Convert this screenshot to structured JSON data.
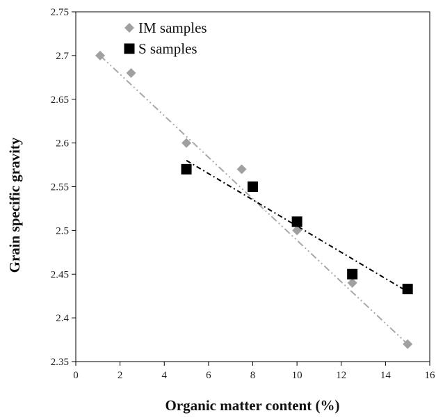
{
  "chart_data": {
    "type": "scatter",
    "xlabel": "Organic matter content (%)",
    "ylabel": "Grain specific gravity",
    "xlim": [
      0,
      16
    ],
    "ylim": [
      2.35,
      2.75
    ],
    "xticks": [
      "0",
      "2",
      "4",
      "6",
      "8",
      "10",
      "12",
      "14",
      "16"
    ],
    "yticks": [
      "2.35",
      "2.4",
      "2.45",
      "2.5",
      "2.55",
      "2.6",
      "2.65",
      "2.7",
      "2.75"
    ],
    "grid": false,
    "legend_position": "top-left",
    "series": [
      {
        "name": "IM samples",
        "marker": "diamond",
        "color": "#a0a0a0",
        "x": [
          1.1,
          2.5,
          5.0,
          7.5,
          10.0,
          12.5,
          15.0
        ],
        "y": [
          2.7,
          2.68,
          2.6,
          2.57,
          2.5,
          2.44,
          2.37
        ],
        "trendline": {
          "style": "dash-dot-dot",
          "color": "#a8a8a8",
          "x": [
            1.1,
            15.0
          ],
          "y": [
            2.7,
            2.37
          ]
        }
      },
      {
        "name": "S samples",
        "marker": "square",
        "color": "#000000",
        "x": [
          5.0,
          8.0,
          10.0,
          12.5,
          15.0
        ],
        "y": [
          2.57,
          2.55,
          2.51,
          2.45,
          2.433
        ],
        "trendline": {
          "style": "dash-dot",
          "color": "#000000",
          "x": [
            5.0,
            15.0
          ],
          "y": [
            2.58,
            2.43
          ]
        }
      }
    ]
  }
}
